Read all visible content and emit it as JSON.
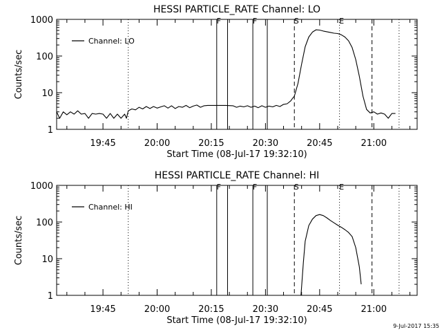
{
  "footer_timestamp": "9-Jul-2017 15:35",
  "chart_data": [
    {
      "type": "line",
      "title": "HESSI PARTICLE_RATE Channel: LO",
      "xlabel": "Start Time (08-Jul-17 19:32:10)",
      "ylabel": "Counts/sec",
      "y_scale": "log",
      "ylim": [
        1,
        1000
      ],
      "xlim": [
        "19:32:10",
        "21:12:00"
      ],
      "x_ticks": [
        "19:45",
        "20:00",
        "20:15",
        "20:30",
        "20:45",
        "21:00"
      ],
      "y_ticks": [
        "1",
        "10",
        "100",
        "1000"
      ],
      "legend": {
        "label": "Channel: LO",
        "position": "top-left"
      },
      "markers": [
        {
          "time": "19:52:00",
          "style": "dotted",
          "label": ""
        },
        {
          "time": "20:16:30",
          "style": "solid",
          "label": "F"
        },
        {
          "time": "20:19:30",
          "style": "solid",
          "label": ""
        },
        {
          "time": "20:26:30",
          "style": "solid",
          "label": "F"
        },
        {
          "time": "20:30:30",
          "style": "solid",
          "label": ""
        },
        {
          "time": "20:38:00",
          "style": "dashed",
          "label": "S"
        },
        {
          "time": "20:50:30",
          "style": "dotted",
          "label": "E"
        },
        {
          "time": "20:59:30",
          "style": "dashed",
          "label": ""
        },
        {
          "time": "21:07:00",
          "style": "dotted",
          "label": ""
        }
      ],
      "series": [
        {
          "name": "Channel: LO",
          "points": [
            [
              "19:32:10",
              3.0
            ],
            [
              "19:33:00",
              2.0
            ],
            [
              "19:34:00",
              3.0
            ],
            [
              "19:35:00",
              2.5
            ],
            [
              "19:36:00",
              3.0
            ],
            [
              "19:37:00",
              2.6
            ],
            [
              "19:38:00",
              3.2
            ],
            [
              "19:39:00",
              2.6
            ],
            [
              "19:40:00",
              2.7
            ],
            [
              "19:41:00",
              2.0
            ],
            [
              "19:42:00",
              2.7
            ],
            [
              "19:43:00",
              2.6
            ],
            [
              "19:44:00",
              2.7
            ],
            [
              "19:45:00",
              2.6
            ],
            [
              "19:46:00",
              2.0
            ],
            [
              "19:47:00",
              2.7
            ],
            [
              "19:48:00",
              2.0
            ],
            [
              "19:49:00",
              2.6
            ],
            [
              "19:50:00",
              2.0
            ],
            [
              "19:51:00",
              2.6
            ],
            [
              "19:51:30",
              2.0
            ],
            [
              "19:52:00",
              3.2
            ],
            [
              "19:53:00",
              3.6
            ],
            [
              "19:54:00",
              3.4
            ],
            [
              "19:55:00",
              4.0
            ],
            [
              "19:56:00",
              3.6
            ],
            [
              "19:57:00",
              4.2
            ],
            [
              "19:58:00",
              3.7
            ],
            [
              "19:59:00",
              4.2
            ],
            [
              "20:00:00",
              3.8
            ],
            [
              "20:01:00",
              4.1
            ],
            [
              "20:02:00",
              4.4
            ],
            [
              "20:03:00",
              3.8
            ],
            [
              "20:04:00",
              4.4
            ],
            [
              "20:05:00",
              3.7
            ],
            [
              "20:06:00",
              4.2
            ],
            [
              "20:07:00",
              4.0
            ],
            [
              "20:08:00",
              4.5
            ],
            [
              "20:09:00",
              3.9
            ],
            [
              "20:10:00",
              4.3
            ],
            [
              "20:11:00",
              4.6
            ],
            [
              "20:12:00",
              4.0
            ],
            [
              "20:13:00",
              4.4
            ],
            [
              "20:14:00",
              4.5
            ],
            [
              "20:15:00",
              4.5
            ],
            [
              "20:17:00",
              4.5
            ],
            [
              "20:19:00",
              4.5
            ],
            [
              "20:21:00",
              4.4
            ],
            [
              "20:22:00",
              4.0
            ],
            [
              "20:23:00",
              4.3
            ],
            [
              "20:24:00",
              4.1
            ],
            [
              "20:25:00",
              4.4
            ],
            [
              "20:26:00",
              4.0
            ],
            [
              "20:27:00",
              4.3
            ],
            [
              "20:28:00",
              3.9
            ],
            [
              "20:29:00",
              4.4
            ],
            [
              "20:30:00",
              4.0
            ],
            [
              "20:31:00",
              4.3
            ],
            [
              "20:32:00",
              4.1
            ],
            [
              "20:33:00",
              4.5
            ],
            [
              "20:34:00",
              4.2
            ],
            [
              "20:35:00",
              4.8
            ],
            [
              "20:36:00",
              5.0
            ],
            [
              "20:37:00",
              6.0
            ],
            [
              "20:37:30",
              7.0
            ],
            [
              "20:38:00",
              8.0
            ],
            [
              "20:39:00",
              18.0
            ],
            [
              "20:40:00",
              60.0
            ],
            [
              "20:41:00",
              180.0
            ],
            [
              "20:42:00",
              330.0
            ],
            [
              "20:43:00",
              450.0
            ],
            [
              "20:44:00",
              520.0
            ],
            [
              "20:45:00",
              510.0
            ],
            [
              "20:46:00",
              480.0
            ],
            [
              "20:47:00",
              460.0
            ],
            [
              "20:48:00",
              440.0
            ],
            [
              "20:49:00",
              420.0
            ],
            [
              "20:50:00",
              410.0
            ],
            [
              "20:51:00",
              380.0
            ],
            [
              "20:52:00",
              330.0
            ],
            [
              "20:53:00",
              260.0
            ],
            [
              "20:54:00",
              170.0
            ],
            [
              "20:55:00",
              80.0
            ],
            [
              "20:56:00",
              28.0
            ],
            [
              "20:57:00",
              8.0
            ],
            [
              "20:58:00",
              3.5
            ],
            [
              "20:59:00",
              2.8
            ],
            [
              "21:00:00",
              3.0
            ],
            [
              "21:01:00",
              2.6
            ],
            [
              "21:02:00",
              2.8
            ],
            [
              "21:03:00",
              2.6
            ],
            [
              "21:04:00",
              2.0
            ],
            [
              "21:05:00",
              2.7
            ],
            [
              "21:06:00",
              2.7
            ]
          ]
        }
      ]
    },
    {
      "type": "line",
      "title": "HESSI PARTICLE_RATE Channel: HI",
      "xlabel": "Start Time (08-Jul-17 19:32:10)",
      "ylabel": "Counts/sec",
      "y_scale": "log",
      "ylim": [
        1,
        1000
      ],
      "xlim": [
        "19:32:10",
        "21:12:00"
      ],
      "x_ticks": [
        "19:45",
        "20:00",
        "20:15",
        "20:30",
        "20:45",
        "21:00"
      ],
      "y_ticks": [
        "1",
        "10",
        "100",
        "1000"
      ],
      "legend": {
        "label": "Channel: HI",
        "position": "top-left"
      },
      "markers": [
        {
          "time": "19:52:00",
          "style": "dotted",
          "label": ""
        },
        {
          "time": "20:16:30",
          "style": "solid",
          "label": "F"
        },
        {
          "time": "20:19:30",
          "style": "solid",
          "label": ""
        },
        {
          "time": "20:26:30",
          "style": "solid",
          "label": "F"
        },
        {
          "time": "20:30:30",
          "style": "solid",
          "label": ""
        },
        {
          "time": "20:38:00",
          "style": "dashed",
          "label": "S"
        },
        {
          "time": "20:50:30",
          "style": "dotted",
          "label": "E"
        },
        {
          "time": "20:59:30",
          "style": "dashed",
          "label": ""
        },
        {
          "time": "21:07:00",
          "style": "dotted",
          "label": ""
        }
      ],
      "series": [
        {
          "name": "Channel: HI",
          "points": [
            [
              "20:39:50",
              1.0
            ],
            [
              "20:40:30",
              8.0
            ],
            [
              "20:41:00",
              30.0
            ],
            [
              "20:42:00",
              80.0
            ],
            [
              "20:43:00",
              120.0
            ],
            [
              "20:44:00",
              150.0
            ],
            [
              "20:45:00",
              160.0
            ],
            [
              "20:46:00",
              150.0
            ],
            [
              "20:47:00",
              130.0
            ],
            [
              "20:48:00",
              110.0
            ],
            [
              "20:49:00",
              95.0
            ],
            [
              "20:50:00",
              82.0
            ],
            [
              "20:51:00",
              72.0
            ],
            [
              "20:52:00",
              62.0
            ],
            [
              "20:53:00",
              52.0
            ],
            [
              "20:54:00",
              40.0
            ],
            [
              "20:55:00",
              20.0
            ],
            [
              "20:56:00",
              6.0
            ],
            [
              "20:56:30",
              2.0
            ]
          ]
        }
      ]
    }
  ]
}
